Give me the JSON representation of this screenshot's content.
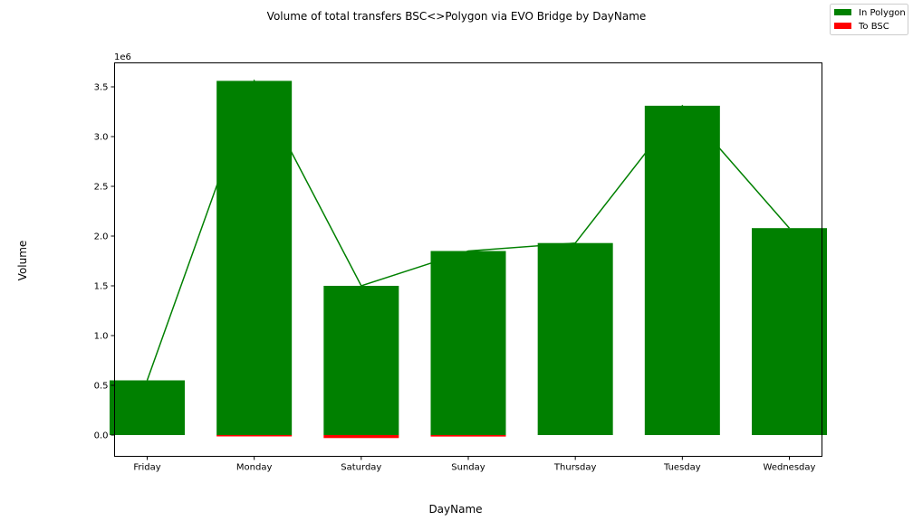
{
  "chart_data": {
    "type": "bar",
    "title": "Volume of total transfers BSC<>Polygon via EVO Bridge by DayName",
    "xlabel": "DayName",
    "ylabel": "Volume",
    "y_offset_label": "1e6",
    "ylim": [
      -0.2,
      3.75
    ],
    "y_ticks": [
      0.0,
      0.5,
      1.0,
      1.5,
      2.0,
      2.5,
      3.0,
      3.5
    ],
    "y_tick_labels": [
      "0.0",
      "0.5",
      "1.0",
      "1.5",
      "2.0",
      "2.5",
      "3.0",
      "3.5"
    ],
    "grid": false,
    "legend_position": "top-right",
    "categories": [
      "Friday",
      "Monday",
      "Saturday",
      "Sunday",
      "Thursday",
      "Tuesday",
      "Wednesday"
    ],
    "series": [
      {
        "name": "In Polygon",
        "kind": "bar",
        "color": "#008000",
        "values": [
          0.55,
          3.56,
          1.5,
          1.85,
          1.93,
          3.31,
          2.08
        ]
      },
      {
        "name": "To BSC",
        "kind": "bar",
        "color": "#ff0000",
        "values": [
          0.0,
          -0.01,
          -0.03,
          -0.015,
          0.0,
          0.0,
          0.0
        ]
      },
      {
        "kind": "line",
        "color": "#008000",
        "values": [
          0.55,
          3.56,
          1.5,
          1.85,
          1.93,
          3.31,
          2.08
        ]
      }
    ]
  }
}
